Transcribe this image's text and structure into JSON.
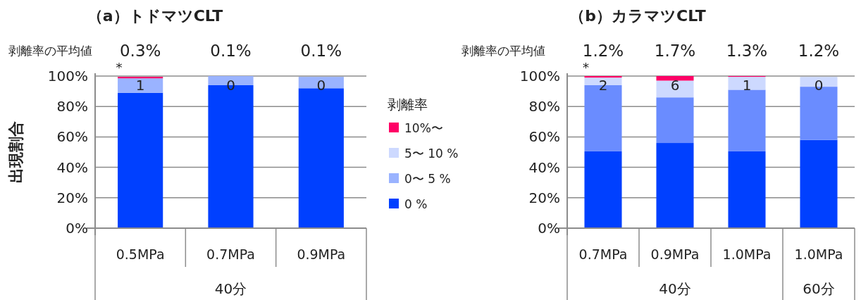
{
  "chart_data": [
    {
      "type": "bar",
      "stacked": true,
      "title": "（a）トドマツCLT",
      "ylabel": "出現割合",
      "legend_title": "剥離率",
      "legend": "right",
      "grid": "y",
      "categories": [
        "0.5MPa",
        "0.7MPa",
        "0.9MPa"
      ],
      "ylim": [
        0,
        100
      ],
      "yticks": [
        {
          "value": 0,
          "label": "0%"
        },
        {
          "value": 20,
          "label": "20%"
        },
        {
          "value": 40,
          "label": "40%"
        },
        {
          "value": 60,
          "label": "60%"
        },
        {
          "value": 80,
          "label": "80%"
        },
        {
          "value": 100,
          "label": "100%"
        }
      ],
      "series": [
        {
          "name": "0 %",
          "color": "#0040ff",
          "values": [
            89,
            94,
            92
          ]
        },
        {
          "name": "0〜 5 %",
          "color": "#9ab3ff",
          "values": [
            9.5,
            6,
            7.5
          ]
        },
        {
          "name": "5〜 10 %",
          "color": "#cdd9ff",
          "values": [
            null,
            0,
            null
          ]
        },
        {
          "name": "10%〜",
          "color": "#ff0066",
          "values": [
            1,
            0,
            0
          ]
        }
      ],
      "annotations": [
        "剥離率の平均値",
        "0.3%",
        "0.1%",
        "0.1%",
        "*",
        "1",
        "0",
        "0",
        "40分"
      ]
    },
    {
      "type": "bar",
      "stacked": true,
      "title": "（b）カラマツCLT",
      "grid": "y",
      "categories": [
        "0.7MPa",
        "0.9MPa",
        "1.0MPa",
        "1.0MPa"
      ],
      "ylim": [
        0,
        100
      ],
      "yticks": [
        {
          "value": 0,
          "label": "0%"
        },
        {
          "value": 20,
          "label": "20%"
        },
        {
          "value": 40,
          "label": "40%"
        },
        {
          "value": 60,
          "label": "60%"
        },
        {
          "value": 80,
          "label": "80%"
        },
        {
          "value": 100,
          "label": "100%"
        }
      ],
      "series": [
        {
          "color": "#0040ff",
          "values": [
            50.5,
            56,
            50.5,
            58
          ]
        },
        {
          "color": "#6a8cff",
          "values": [
            43.5,
            30,
            40.5,
            35
          ]
        },
        {
          "color": "#cdd9ff",
          "values": [
            5,
            11,
            8.5,
            6.5
          ]
        },
        {
          "color": "#ff0066",
          "values": [
            1,
            3,
            0.5,
            0
          ]
        }
      ],
      "annotations": [
        "剥離率の平均値",
        "1.2%",
        "1.7%",
        "1.3%",
        "1.2%",
        "*",
        "2",
        "6",
        "1",
        "0",
        "40分",
        "60分"
      ]
    }
  ]
}
